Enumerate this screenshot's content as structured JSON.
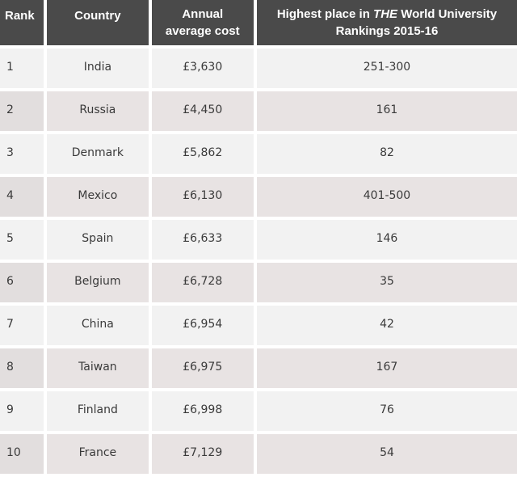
{
  "table": {
    "headers": {
      "rank": "Rank",
      "country": "Country",
      "cost_line1": "Annual",
      "cost_line2": "average cost",
      "place_pre": "Highest place in ",
      "place_em": "THE",
      "place_post": " World University",
      "place_line2": "Rankings 2015-16"
    },
    "rows": [
      {
        "rank": "1",
        "country": "India",
        "cost": "£3,630",
        "place": "251-300"
      },
      {
        "rank": "2",
        "country": "Russia",
        "cost": "£4,450",
        "place": "161"
      },
      {
        "rank": "3",
        "country": "Denmark",
        "cost": "£5,862",
        "place": "82"
      },
      {
        "rank": "4",
        "country": "Mexico",
        "cost": "£6,130",
        "place": "401-500"
      },
      {
        "rank": "5",
        "country": "Spain",
        "cost": "£6,633",
        "place": "146"
      },
      {
        "rank": "6",
        "country": "Belgium",
        "cost": "£6,728",
        "place": "35"
      },
      {
        "rank": "7",
        "country": "China",
        "cost": "£6,954",
        "place": "42"
      },
      {
        "rank": "8",
        "country": "Taiwan",
        "cost": "£6,975",
        "place": "167"
      },
      {
        "rank": "9",
        "country": "Finland",
        "cost": "£6,998",
        "place": "76"
      },
      {
        "rank": "10",
        "country": "France",
        "cost": "£7,129",
        "place": "54"
      }
    ],
    "colors": {
      "header_bg": "#4a4a4a",
      "header_text": "#ffffff",
      "row_light": "#f2f2f2",
      "row_dark": "#e8e3e3",
      "body_text": "#3a3a3a"
    }
  }
}
